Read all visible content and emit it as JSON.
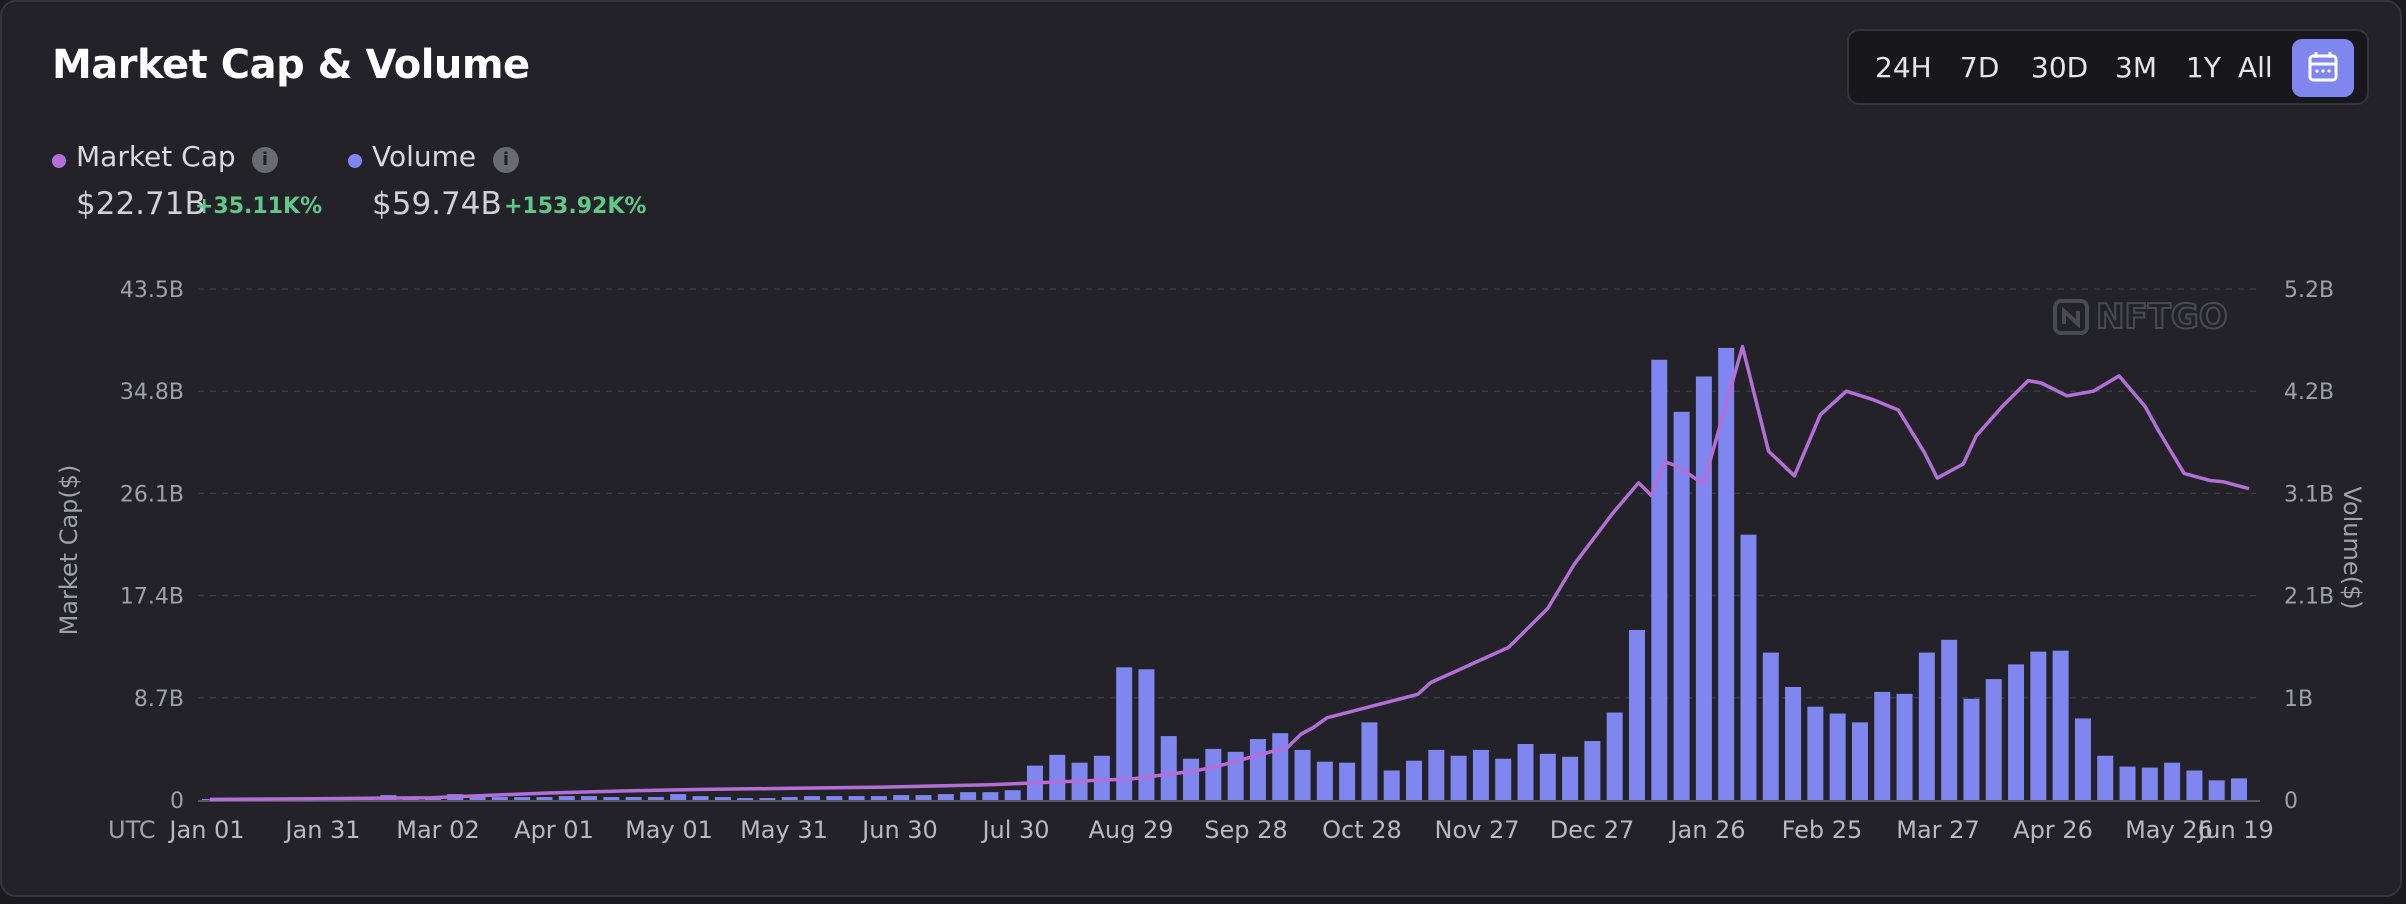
{
  "title": "Market Cap & Volume",
  "range_buttons": [
    "24H",
    "7D",
    "30D",
    "3M",
    "1Y",
    "All"
  ],
  "legend": {
    "market_cap": {
      "label": "Market Cap",
      "value": "$22.71B",
      "change": "+35.11K%",
      "color": "#b46fd6"
    },
    "volume": {
      "label": "Volume",
      "value": "$59.74B",
      "change": "+153.92K%",
      "color": "#7f86f0"
    }
  },
  "watermark": "NFTGO",
  "chart_data": {
    "type": "bar",
    "ylabel": "Market Cap($)",
    "y2label": "Volume($)",
    "xlabel": "UTC",
    "y_ticks": [
      "43.5B",
      "34.8B",
      "26.1B",
      "17.4B",
      "8.7B",
      "0"
    ],
    "y2_ticks": [
      "5.2B",
      "4.2B",
      "3.1B",
      "2.1B",
      "1B",
      "0"
    ],
    "x_ticks": [
      "Jan 01",
      "Jan 31",
      "Mar 02",
      "Apr 01",
      "May 01",
      "May 31",
      "Jun 30",
      "Jul 30",
      "Aug 29",
      "Sep 28",
      "Oct 28",
      "Nov 27",
      "Dec 27",
      "Jan 26",
      "Feb 25",
      "Mar 27",
      "Apr 26",
      "May 26",
      "Jun 19"
    ],
    "ylim": [
      0,
      43.5
    ],
    "y2lim": [
      0,
      5.2
    ],
    "grid": true,
    "series": [
      {
        "name": "Volume",
        "type": "bar",
        "axis": "right",
        "unit": "B",
        "values": [
          0.01,
          0.01,
          0.01,
          0.01,
          0.01,
          0.01,
          0.01,
          0.01,
          0.05,
          0.03,
          0.02,
          0.06,
          0.03,
          0.03,
          0.03,
          0.03,
          0.04,
          0.04,
          0.03,
          0.03,
          0.03,
          0.06,
          0.04,
          0.03,
          0.02,
          0.02,
          0.03,
          0.04,
          0.04,
          0.04,
          0.04,
          0.05,
          0.05,
          0.06,
          0.08,
          0.08,
          0.1,
          0.35,
          0.46,
          0.38,
          0.45,
          1.35,
          1.33,
          0.65,
          0.42,
          0.52,
          0.49,
          0.62,
          0.68,
          0.51,
          0.39,
          0.38,
          0.79,
          0.3,
          0.4,
          0.51,
          0.45,
          0.51,
          0.42,
          0.57,
          0.47,
          0.44,
          0.6,
          0.89,
          1.73,
          4.48,
          3.95,
          4.31,
          4.6,
          2.7,
          1.5,
          1.15,
          0.95,
          0.88,
          0.79,
          1.1,
          1.08,
          1.5,
          1.63,
          1.03,
          1.23,
          1.38,
          1.51,
          1.52,
          0.83,
          0.45,
          0.34,
          0.33,
          0.38,
          0.3,
          0.2,
          0.22
        ]
      },
      {
        "name": "Market Cap",
        "type": "line",
        "axis": "left",
        "unit": "B",
        "x": [
          0,
          8,
          17,
          26,
          33,
          38,
          45,
          52,
          60,
          71,
          76,
          78,
          83,
          84,
          85,
          86,
          93,
          94,
          96,
          98,
          100,
          103,
          105,
          108,
          110,
          111,
          112,
          113,
          115,
          118,
          120,
          122,
          124,
          126,
          128,
          130,
          132,
          133,
          135,
          136,
          138,
          140,
          141,
          143,
          145,
          147,
          149,
          150,
          152,
          154,
          155,
          157
        ],
        "values": [
          0.05,
          0.1,
          0.2,
          0.6,
          0.8,
          0.9,
          1.0,
          1.1,
          1.3,
          1.8,
          2.5,
          3.0,
          4.5,
          5.6,
          6.2,
          7.0,
          9.0,
          10.0,
          11.0,
          12.0,
          13.0,
          16.3,
          20.0,
          24.4,
          27.0,
          25.9,
          28.8,
          28.4,
          26.9,
          38.6,
          29.7,
          27.6,
          32.8,
          34.8,
          34.1,
          33.2,
          29.6,
          27.4,
          28.6,
          31.0,
          33.5,
          35.7,
          35.5,
          34.4,
          34.8,
          36.1,
          33.5,
          31.5,
          27.8,
          27.2,
          27.1,
          26.5
        ]
      }
    ]
  }
}
